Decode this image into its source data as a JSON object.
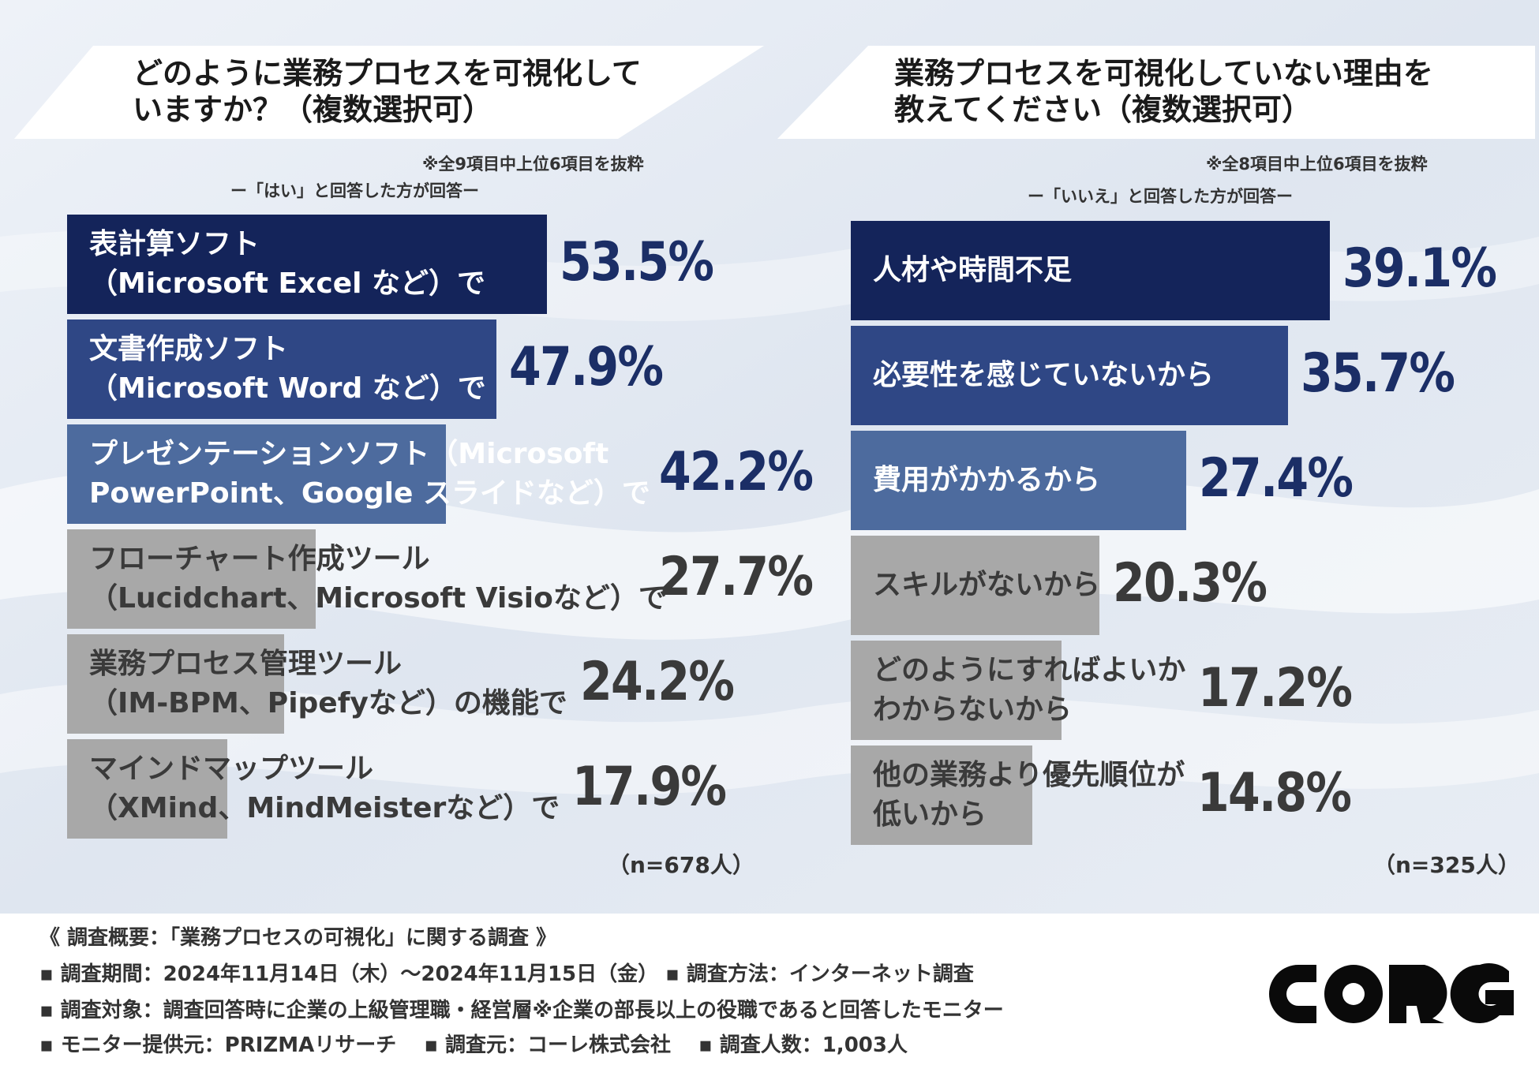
{
  "left": {
    "title": "どのように業務プロセスを可視化して\nいますか？（複数選択可）",
    "note_extract": "※全9項目中上位6項目を抜粋",
    "note_respondents": "ー「はい」と回答した方が回答ー",
    "sample": "（n=678人）"
  },
  "right": {
    "title": "業務プロセスを可視化していない理由を\n教えてください（複数選択可）",
    "note_extract": "※全8項目中上位6項目を抜粋",
    "note_respondents": "ー「いいえ」と回答した方が回答ー",
    "sample": "（n=325人）"
  },
  "colors": {
    "top1": "#14245a",
    "top2": "#2f4785",
    "top3": "#4d6b9e",
    "other": "#a8a8a8",
    "label_light": "#ffffff",
    "label_dark": "#3a3a3a",
    "value_top": "#1b2e66",
    "value_other": "#3a3a3a"
  },
  "chart_data": [
    {
      "type": "bar",
      "orientation": "horizontal",
      "title": "どのように業務プロセスを可視化していますか？（複数選択可）",
      "unit": "%",
      "categories": [
        "表計算ソフト\n（Microsoft Excel など）で",
        "文書作成ソフト\n（Microsoft Word など）で",
        "プレゼンテーションソフト（Microsoft\nPowerPoint、Google スライドなど）で",
        "フローチャート作成ツール\n（Lucidchart、Microsoft Visioなど）で",
        "業務プロセス管理ツール\n（IM-BPM、Pipefyなど）の機能で",
        "マインドマップツール\n（XMind、MindMeisterなど）で"
      ],
      "values": [
        53.5,
        47.9,
        42.2,
        27.7,
        24.2,
        17.9
      ],
      "value_labels": [
        "53.5%",
        "47.9%",
        "42.2%",
        "27.7%",
        "24.2%",
        "17.9%"
      ],
      "xlim": [
        0,
        100
      ]
    },
    {
      "type": "bar",
      "orientation": "horizontal",
      "title": "業務プロセスを可視化していない理由を教えてください（複数選択可）",
      "unit": "%",
      "categories": [
        "人材や時間不足",
        "必要性を感じていないから",
        "費用がかかるから",
        "スキルがないから",
        "どのようにすればよいか\nわからないから",
        "他の業務より優先順位が\n低いから"
      ],
      "values": [
        39.1,
        35.7,
        27.4,
        20.3,
        17.2,
        14.8
      ],
      "value_labels": [
        "39.1%",
        "35.7%",
        "27.4%",
        "20.3%",
        "17.2%",
        "14.8%"
      ],
      "xlim": [
        0,
        80
      ]
    }
  ],
  "footer": {
    "heading": "《 調査概要：「業務プロセスの可視化」に関する調査 》",
    "line1": "▪ 調査期間：2024年11月14日（木）〜2024年11月15日（金） ▪ 調査方法：インターネット調査",
    "line2": "▪ 調査対象：調査回答時に企業の上級管理職・経営層※企業の部長以上の役職であると回答したモニター",
    "line3": "▪ モニター提供元：PRIZMAリサーチ　 ▪ 調査元：コーレ株式会社　 ▪ 調査人数：1,003人",
    "logo_text": "CORG"
  }
}
